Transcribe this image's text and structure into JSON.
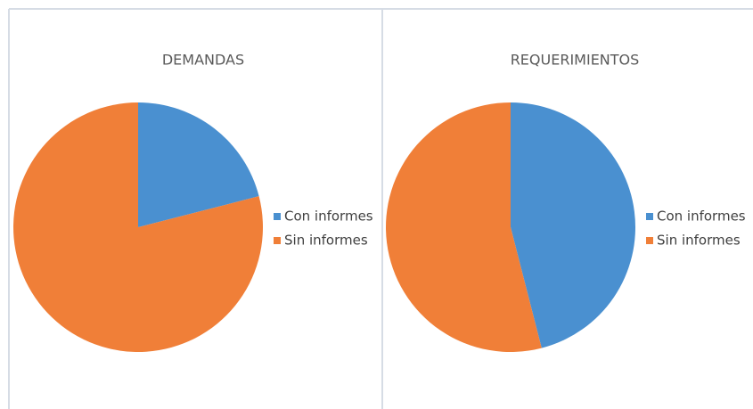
{
  "chart_data": [
    {
      "type": "pie",
      "title": "DEMANDAS",
      "categories": [
        "Con informes",
        "Sin informes"
      ],
      "values": [
        21,
        79
      ],
      "colors": [
        "#4a90d0",
        "#f07f38"
      ],
      "legend": "right"
    },
    {
      "type": "pie",
      "title": "REQUERIMIENTOS",
      "categories": [
        "Con informes",
        "Sin informes"
      ],
      "values": [
        46,
        54
      ],
      "colors": [
        "#4a90d0",
        "#f07f38"
      ],
      "legend": "right"
    }
  ]
}
